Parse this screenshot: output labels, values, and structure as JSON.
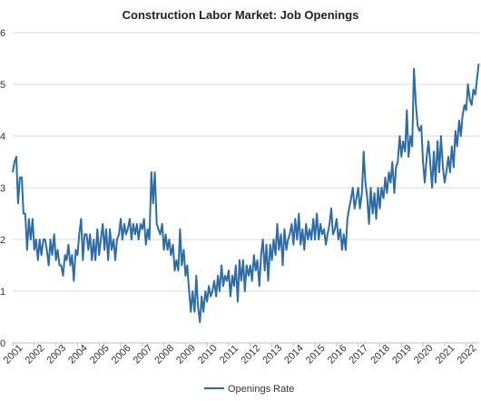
{
  "chart_data": {
    "type": "line",
    "title": "Construction Labor Market: Job Openings",
    "xlabel": "",
    "ylabel": "",
    "xlim": [
      2001.0,
      2022.6
    ],
    "ylim": [
      0,
      6
    ],
    "y_ticks": [
      {
        "value": 0,
        "label": "0"
      },
      {
        "value": 1,
        "label": "1"
      },
      {
        "value": 2,
        "label": "2"
      },
      {
        "value": 3,
        "label": "3"
      },
      {
        "value": 4,
        "label": "4"
      },
      {
        "value": 5,
        "label": "5"
      },
      {
        "value": 6,
        "label": "6"
      }
    ],
    "x_ticks": [
      "2001",
      "2002",
      "2003",
      "2004",
      "2005",
      "2006",
      "2007",
      "2008",
      "2009",
      "2010",
      "2011",
      "2012",
      "2013",
      "2014",
      "2015",
      "2016",
      "2017",
      "2018",
      "2019",
      "2020",
      "2021",
      "2022"
    ],
    "grid": "horizontal",
    "legend": "bottom",
    "series": [
      {
        "name": "Openings Rate",
        "color": "#2e6ca5",
        "points": [
          [
            2001.0,
            3.3
          ],
          [
            2001.08,
            3.5
          ],
          [
            2001.17,
            3.6
          ],
          [
            2001.25,
            2.7
          ],
          [
            2001.33,
            3.2
          ],
          [
            2001.42,
            3.2
          ],
          [
            2001.5,
            2.5
          ],
          [
            2001.58,
            2.5
          ],
          [
            2001.67,
            1.8
          ],
          [
            2001.75,
            2.4
          ],
          [
            2001.83,
            2.0
          ],
          [
            2001.92,
            2.4
          ],
          [
            2002.0,
            1.8
          ],
          [
            2002.08,
            2.0
          ],
          [
            2002.17,
            1.6
          ],
          [
            2002.25,
            2.0
          ],
          [
            2002.33,
            1.7
          ],
          [
            2002.42,
            2.0
          ],
          [
            2002.5,
            2.0
          ],
          [
            2002.58,
            1.8
          ],
          [
            2002.67,
            1.5
          ],
          [
            2002.75,
            2.0
          ],
          [
            2002.83,
            1.7
          ],
          [
            2002.92,
            2.1
          ],
          [
            2003.0,
            1.6
          ],
          [
            2003.08,
            1.8
          ],
          [
            2003.17,
            1.5
          ],
          [
            2003.25,
            1.5
          ],
          [
            2003.33,
            1.3
          ],
          [
            2003.42,
            1.7
          ],
          [
            2003.5,
            1.6
          ],
          [
            2003.58,
            1.9
          ],
          [
            2003.67,
            1.5
          ],
          [
            2003.75,
            1.7
          ],
          [
            2003.83,
            1.2
          ],
          [
            2003.92,
            1.8
          ],
          [
            2004.0,
            1.7
          ],
          [
            2004.08,
            2.1
          ],
          [
            2004.17,
            2.4
          ],
          [
            2004.25,
            1.6
          ],
          [
            2004.33,
            2.1
          ],
          [
            2004.42,
            2.1
          ],
          [
            2004.5,
            1.8
          ],
          [
            2004.58,
            2.1
          ],
          [
            2004.67,
            1.6
          ],
          [
            2004.75,
            2.0
          ],
          [
            2004.83,
            1.6
          ],
          [
            2004.92,
            2.2
          ],
          [
            2005.0,
            1.7
          ],
          [
            2005.08,
            2.0
          ],
          [
            2005.17,
            2.3
          ],
          [
            2005.25,
            1.8
          ],
          [
            2005.33,
            2.2
          ],
          [
            2005.42,
            1.6
          ],
          [
            2005.5,
            2.2
          ],
          [
            2005.58,
            1.8
          ],
          [
            2005.67,
            2.0
          ],
          [
            2005.75,
            1.6
          ],
          [
            2005.83,
            2.0
          ],
          [
            2005.92,
            2.1
          ],
          [
            2006.0,
            2.4
          ],
          [
            2006.08,
            2.0
          ],
          [
            2006.17,
            2.3
          ],
          [
            2006.25,
            2.1
          ],
          [
            2006.33,
            2.2
          ],
          [
            2006.42,
            2.4
          ],
          [
            2006.5,
            2.0
          ],
          [
            2006.58,
            2.3
          ],
          [
            2006.67,
            2.1
          ],
          [
            2006.75,
            2.3
          ],
          [
            2006.83,
            2.0
          ],
          [
            2006.92,
            2.3
          ],
          [
            2007.0,
            2.2
          ],
          [
            2007.08,
            2.4
          ],
          [
            2007.17,
            1.9
          ],
          [
            2007.25,
            2.2
          ],
          [
            2007.33,
            2.0
          ],
          [
            2007.42,
            3.3
          ],
          [
            2007.5,
            2.7
          ],
          [
            2007.58,
            3.3
          ],
          [
            2007.67,
            2.3
          ],
          [
            2007.75,
            2.2
          ],
          [
            2007.83,
            2.1
          ],
          [
            2007.92,
            2.3
          ],
          [
            2008.0,
            1.8
          ],
          [
            2008.08,
            2.1
          ],
          [
            2008.17,
            1.8
          ],
          [
            2008.25,
            2.0
          ],
          [
            2008.33,
            1.7
          ],
          [
            2008.42,
            1.9
          ],
          [
            2008.5,
            1.4
          ],
          [
            2008.58,
            1.6
          ],
          [
            2008.67,
            1.4
          ],
          [
            2008.75,
            2.2
          ],
          [
            2008.83,
            1.5
          ],
          [
            2008.92,
            1.8
          ],
          [
            2009.0,
            1.3
          ],
          [
            2009.08,
            1.5
          ],
          [
            2009.17,
            1.0
          ],
          [
            2009.25,
            0.6
          ],
          [
            2009.33,
            1.0
          ],
          [
            2009.42,
            0.6
          ],
          [
            2009.5,
            1.3
          ],
          [
            2009.58,
            0.7
          ],
          [
            2009.67,
            0.4
          ],
          [
            2009.75,
            0.9
          ],
          [
            2009.83,
            0.6
          ],
          [
            2009.92,
            1.0
          ],
          [
            2010.0,
            0.8
          ],
          [
            2010.08,
            1.1
          ],
          [
            2010.17,
            0.9
          ],
          [
            2010.25,
            1.0
          ],
          [
            2010.33,
            1.2
          ],
          [
            2010.42,
            0.9
          ],
          [
            2010.5,
            1.3
          ],
          [
            2010.58,
            1.0
          ],
          [
            2010.67,
            1.5
          ],
          [
            2010.75,
            1.1
          ],
          [
            2010.83,
            1.3
          ],
          [
            2010.92,
            1.2
          ],
          [
            2011.0,
            1.4
          ],
          [
            2011.08,
            0.9
          ],
          [
            2011.17,
            1.3
          ],
          [
            2011.25,
            1.1
          ],
          [
            2011.33,
            1.5
          ],
          [
            2011.42,
            0.8
          ],
          [
            2011.5,
            1.6
          ],
          [
            2011.58,
            1.2
          ],
          [
            2011.67,
            1.6
          ],
          [
            2011.75,
            1.0
          ],
          [
            2011.83,
            1.5
          ],
          [
            2011.92,
            1.3
          ],
          [
            2012.0,
            1.5
          ],
          [
            2012.08,
            1.2
          ],
          [
            2012.17,
            1.7
          ],
          [
            2012.25,
            1.4
          ],
          [
            2012.33,
            1.6
          ],
          [
            2012.42,
            1.1
          ],
          [
            2012.5,
            1.7
          ],
          [
            2012.58,
            2.0
          ],
          [
            2012.67,
            1.4
          ],
          [
            2012.75,
            1.9
          ],
          [
            2012.83,
            1.2
          ],
          [
            2012.92,
            1.9
          ],
          [
            2013.0,
            1.6
          ],
          [
            2013.08,
            2.0
          ],
          [
            2013.17,
            1.7
          ],
          [
            2013.25,
            2.3
          ],
          [
            2013.33,
            1.8
          ],
          [
            2013.42,
            2.1
          ],
          [
            2013.5,
            1.5
          ],
          [
            2013.58,
            2.2
          ],
          [
            2013.67,
            1.8
          ],
          [
            2013.75,
            2.0
          ],
          [
            2013.83,
            2.1
          ],
          [
            2013.92,
            2.3
          ],
          [
            2014.0,
            1.9
          ],
          [
            2014.08,
            2.4
          ],
          [
            2014.17,
            2.0
          ],
          [
            2014.25,
            2.5
          ],
          [
            2014.33,
            1.9
          ],
          [
            2014.42,
            2.2
          ],
          [
            2014.5,
            1.8
          ],
          [
            2014.58,
            2.3
          ],
          [
            2014.67,
            2.0
          ],
          [
            2014.75,
            2.2
          ],
          [
            2014.83,
            2.0
          ],
          [
            2014.92,
            2.4
          ],
          [
            2015.0,
            2.0
          ],
          [
            2015.08,
            2.5
          ],
          [
            2015.17,
            2.0
          ],
          [
            2015.25,
            2.3
          ],
          [
            2015.33,
            2.1
          ],
          [
            2015.42,
            2.2
          ],
          [
            2015.5,
            1.9
          ],
          [
            2015.58,
            2.1
          ],
          [
            2015.67,
            2.3
          ],
          [
            2015.75,
            2.6
          ],
          [
            2015.83,
            2.1
          ],
          [
            2015.92,
            2.2
          ],
          [
            2016.0,
            2.4
          ],
          [
            2016.08,
            2.0
          ],
          [
            2016.17,
            2.2
          ],
          [
            2016.25,
            1.8
          ],
          [
            2016.33,
            2.1
          ],
          [
            2016.42,
            1.8
          ],
          [
            2016.5,
            2.4
          ],
          [
            2016.58,
            2.6
          ],
          [
            2016.67,
            2.8
          ],
          [
            2016.75,
            3.0
          ],
          [
            2016.83,
            2.6
          ],
          [
            2016.92,
            2.8
          ],
          [
            2017.0,
            3.0
          ],
          [
            2017.08,
            2.6
          ],
          [
            2017.17,
            2.9
          ],
          [
            2017.25,
            3.7
          ],
          [
            2017.33,
            3.1
          ],
          [
            2017.42,
            2.8
          ],
          [
            2017.5,
            2.3
          ],
          [
            2017.58,
            3.0
          ],
          [
            2017.67,
            2.5
          ],
          [
            2017.75,
            2.9
          ],
          [
            2017.83,
            2.4
          ],
          [
            2017.92,
            3.0
          ],
          [
            2018.0,
            2.6
          ],
          [
            2018.08,
            3.0
          ],
          [
            2018.17,
            2.8
          ],
          [
            2018.25,
            3.2
          ],
          [
            2018.33,
            2.9
          ],
          [
            2018.42,
            3.3
          ],
          [
            2018.5,
            3.1
          ],
          [
            2018.58,
            3.5
          ],
          [
            2018.67,
            2.9
          ],
          [
            2018.75,
            3.4
          ],
          [
            2018.83,
            3.5
          ],
          [
            2018.92,
            4.0
          ],
          [
            2019.0,
            3.6
          ],
          [
            2019.08,
            3.9
          ],
          [
            2019.17,
            3.7
          ],
          [
            2019.25,
            4.5
          ],
          [
            2019.33,
            3.6
          ],
          [
            2019.42,
            4.0
          ],
          [
            2019.5,
            3.8
          ],
          [
            2019.58,
            5.3
          ],
          [
            2019.67,
            4.6
          ],
          [
            2019.75,
            4.2
          ],
          [
            2019.83,
            4.1
          ],
          [
            2019.92,
            4.2
          ],
          [
            2020.0,
            3.5
          ],
          [
            2020.08,
            3.1
          ],
          [
            2020.17,
            3.6
          ],
          [
            2020.25,
            3.9
          ],
          [
            2020.33,
            3.5
          ],
          [
            2020.42,
            3.0
          ],
          [
            2020.5,
            3.7
          ],
          [
            2020.58,
            3.1
          ],
          [
            2020.67,
            3.9
          ],
          [
            2020.75,
            3.3
          ],
          [
            2020.83,
            4.0
          ],
          [
            2020.92,
            3.4
          ],
          [
            2021.0,
            3.1
          ],
          [
            2021.08,
            3.3
          ],
          [
            2021.17,
            3.6
          ],
          [
            2021.25,
            3.3
          ],
          [
            2021.33,
            3.8
          ],
          [
            2021.42,
            3.4
          ],
          [
            2021.5,
            4.1
          ],
          [
            2021.58,
            3.8
          ],
          [
            2021.67,
            4.3
          ],
          [
            2021.75,
            4.0
          ],
          [
            2021.83,
            4.4
          ],
          [
            2021.92,
            4.6
          ],
          [
            2022.0,
            4.5
          ],
          [
            2022.08,
            5.0
          ],
          [
            2022.17,
            4.7
          ],
          [
            2022.25,
            4.6
          ],
          [
            2022.33,
            4.9
          ],
          [
            2022.42,
            4.8
          ],
          [
            2022.5,
            5.1
          ],
          [
            2022.58,
            5.4
          ]
        ]
      }
    ]
  }
}
